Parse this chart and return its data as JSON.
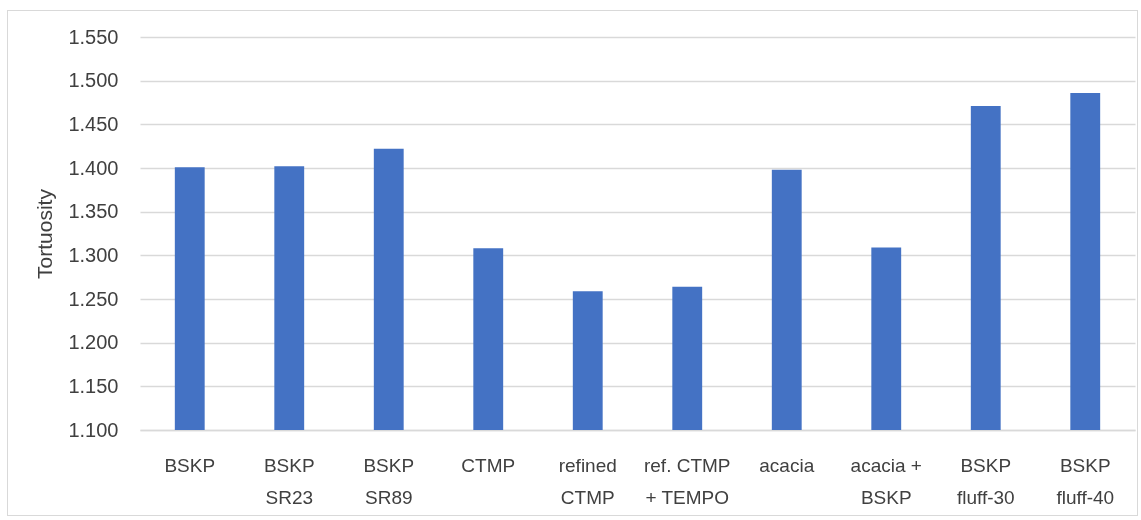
{
  "chart_data": {
    "type": "bar",
    "ylabel": "Tortuosity",
    "categories": [
      "BSKP",
      "BSKP\nSR23",
      "BSKP\nSR89",
      "CTMP",
      "refined\nCTMP",
      "ref. CTMP\n+ TEMPO",
      "acacia",
      "acacia +\nBSKP",
      "BSKP\nfluff-30",
      "BSKP\nfluff-40"
    ],
    "values": [
      1.401,
      1.402,
      1.422,
      1.308,
      1.259,
      1.264,
      1.398,
      1.309,
      1.471,
      1.486
    ],
    "color": "#4472c4",
    "ylim": [
      1.1,
      1.55
    ],
    "yticks": [
      {
        "value": 1.1,
        "label": "1.100"
      },
      {
        "value": 1.15,
        "label": "1.150"
      },
      {
        "value": 1.2,
        "label": "1.200"
      },
      {
        "value": 1.25,
        "label": "1.250"
      },
      {
        "value": 1.3,
        "label": "1.300"
      },
      {
        "value": 1.35,
        "label": "1.350"
      },
      {
        "value": 1.4,
        "label": "1.400"
      },
      {
        "value": 1.45,
        "label": "1.450"
      },
      {
        "value": 1.5,
        "label": "1.500"
      },
      {
        "value": 1.55,
        "label": "1.550"
      }
    ],
    "grid": "y"
  }
}
